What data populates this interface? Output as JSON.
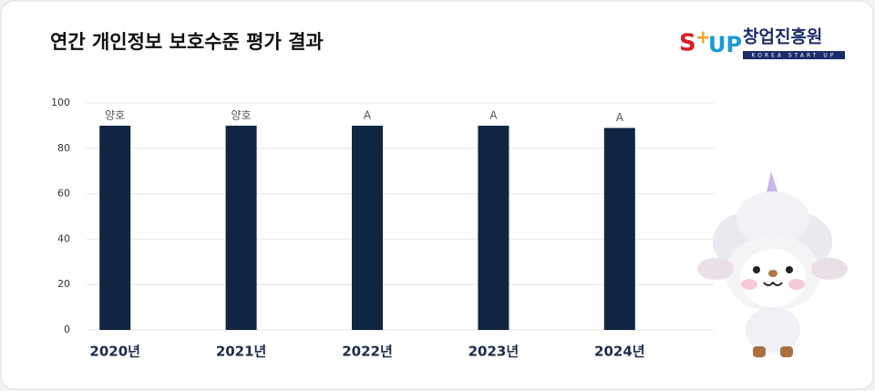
{
  "chart_data": {
    "type": "bar",
    "title": "연간 개인정보 보호수준 평가 결과",
    "logo": {
      "name": "창업진흥원",
      "tagline": "KOREA START UP"
    },
    "categories": [
      "2020년",
      "2021년",
      "2022년",
      "2023년",
      "2024년"
    ],
    "values": [
      90,
      90,
      90,
      90,
      89
    ],
    "value_labels": [
      "양호",
      "양호",
      "A",
      "A",
      "A"
    ],
    "color": "#0f2542",
    "ylim": [
      0,
      100
    ],
    "yticks": [
      0,
      20,
      40,
      60,
      80,
      100
    ],
    "grid": true
  }
}
